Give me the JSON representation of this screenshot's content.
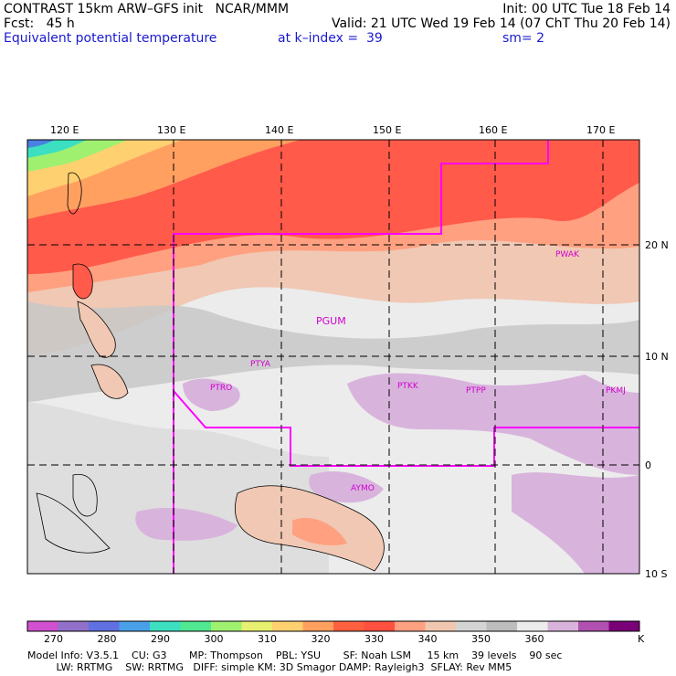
{
  "header": {
    "line1_left": "CONTRAST 15km ARW–GFS init   NCAR/MMM",
    "line1_right": "Init: 00 UTC Tue 18 Feb 14",
    "line2_left": "Fcst:   45 h",
    "line2_right": "Valid: 21 UTC Wed 19 Feb 14 (07 ChT Thu 20 Feb 14)",
    "line3_left": "Equivalent potential temperature",
    "line3_mid": "at k–index =  39",
    "line3_right": "sm= 2"
  },
  "map": {
    "lon_labels": [
      "120 E",
      "130 E",
      "140 E",
      "150 E",
      "160 E",
      "170 E"
    ],
    "lat_labels": [
      "20 N",
      "10 N",
      "0",
      "10 S"
    ],
    "stations": [
      "PWAK",
      "PGUM",
      "PTYA",
      "PTRO",
      "PTKK",
      "PTPP",
      "PKMJ",
      "AYMO"
    ],
    "colors": {
      "hot_band": "#ff5a4a",
      "warm": "#ffa080",
      "light_warm": "#f0c8b4",
      "grey": "#c8c8c8",
      "light": "#ececec",
      "purple": "#d8b4dc",
      "box": "#ff00ff"
    }
  },
  "colorbar": {
    "ticks": [
      "270",
      "280",
      "290",
      "300",
      "310",
      "320",
      "330",
      "340",
      "350",
      "360"
    ],
    "unit": "K",
    "colors": [
      "#d050d0",
      "#9070c8",
      "#6070e0",
      "#4aa0e8",
      "#3ce0c0",
      "#50e890",
      "#a0f070",
      "#e8f070",
      "#ffd070",
      "#ffa060",
      "#ff6040",
      "#ff5040",
      "#ffa080",
      "#f0c8b0",
      "#d4d4d4",
      "#bdbdbd",
      "#ececec",
      "#d8b4dc",
      "#b050b0",
      "#7a0078"
    ]
  },
  "footer": {
    "line1": "Model Info: V3.5.1    CU: G3       MP: Thompson    PBL: YSU       SF: Noah LSM     15 km    39 levels    90 sec",
    "line2": "         LW: RRTMG    SW: RRTMG   DIFF: simple KM: 3D Smagor DAMP: Rayleigh3  SFLAY: Rev MM5"
  }
}
